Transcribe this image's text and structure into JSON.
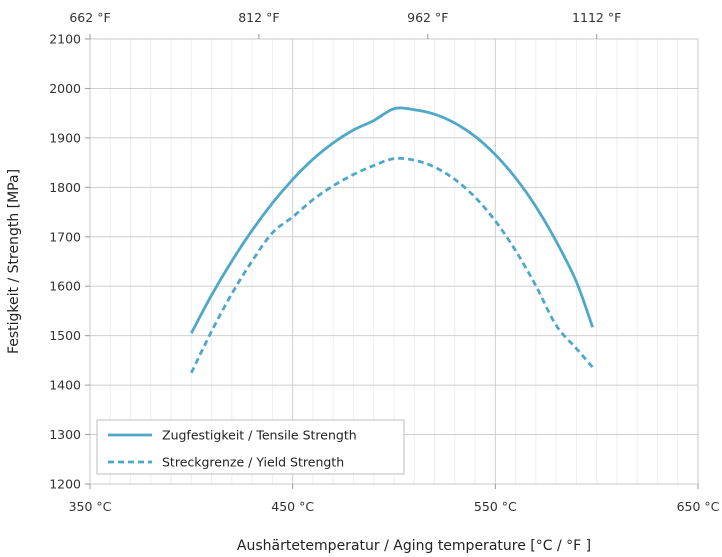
{
  "chart_data": {
    "type": "line",
    "xlabel": "Aushärtetemperatur / Aging temperature [°C / °F ]",
    "ylabel": "Festigkeit / Strength [MPa]",
    "xlim": [
      350,
      650
    ],
    "ylim": [
      1200,
      2100
    ],
    "x_ticks": [
      350,
      450,
      550,
      650
    ],
    "x_tick_labels": [
      "350 °C",
      "450 °C",
      "550 °C",
      "650 °C"
    ],
    "x_minor_step": 10,
    "x2_ticks": [
      662,
      812,
      962,
      1112
    ],
    "x2_tick_labels": [
      "662 °F",
      "812 °F",
      "962 °F",
      "1112 °F"
    ],
    "y_ticks": [
      1200,
      1300,
      1400,
      1500,
      1600,
      1700,
      1800,
      1900,
      2000,
      2100
    ],
    "y_tick_labels": [
      "1200",
      "1300",
      "1400",
      "1500",
      "1600",
      "1700",
      "1800",
      "1900",
      "2000",
      "2100"
    ],
    "grid": true,
    "legend_position": "bottom-left",
    "series": [
      {
        "name": "Zugfestigkeit / Tensile Strength",
        "style": "solid",
        "color": "#4fa8c8",
        "x": [
          400,
          410,
          420,
          430,
          440,
          450,
          460,
          470,
          480,
          490,
          500,
          510,
          520,
          530,
          540,
          550,
          560,
          570,
          580,
          590,
          598
        ],
        "y": [
          1505,
          1582,
          1651,
          1713,
          1768,
          1816,
          1857,
          1890,
          1916,
          1935,
          1959,
          1957,
          1948,
          1930,
          1903,
          1866,
          1819,
          1761,
          1691,
          1609,
          1517
        ]
      },
      {
        "name": "Streckgrenze / Yield Strength",
        "style": "dashed",
        "color": "#4fa8c8",
        "x": [
          400,
          410,
          420,
          430,
          440,
          450,
          460,
          470,
          480,
          490,
          500,
          510,
          520,
          530,
          540,
          550,
          560,
          570,
          580,
          590,
          598
        ],
        "y": [
          1425,
          1509,
          1585,
          1651,
          1708,
          1740,
          1775,
          1803,
          1826,
          1844,
          1858,
          1855,
          1841,
          1816,
          1780,
          1732,
          1672,
          1601,
          1521,
          1474,
          1436
        ]
      }
    ]
  }
}
